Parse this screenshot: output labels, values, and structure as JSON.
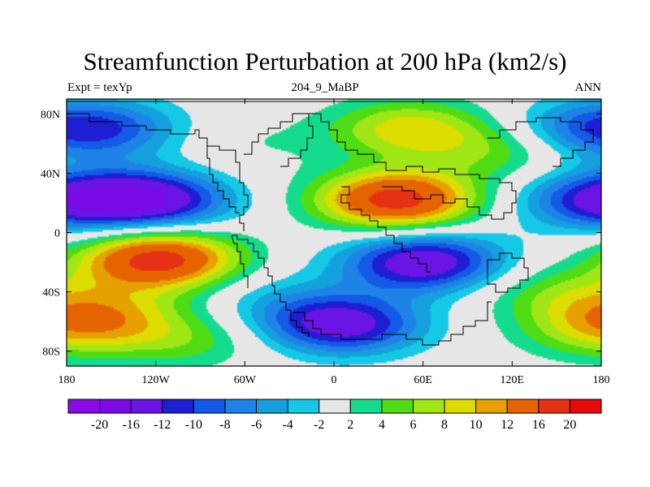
{
  "chart_data": {
    "type": "heatmap",
    "title": "Streamfunction Perturbation at 200 hPa (km2/s)",
    "subtitle_left": "Expt = texYp",
    "subtitle_center": "204_9_MaBP",
    "subtitle_right": "ANN",
    "x_ticks": [
      "180",
      "120W",
      "60W",
      "0",
      "60E",
      "120E",
      "180"
    ],
    "x_tick_values": [
      -180,
      -120,
      -60,
      0,
      60,
      120,
      180
    ],
    "y_ticks": [
      "80N",
      "40N",
      "0",
      "40S",
      "80S"
    ],
    "y_tick_values": [
      80,
      40,
      0,
      -40,
      -80
    ],
    "xlim": [
      -180,
      180
    ],
    "ylim": [
      -90,
      90
    ],
    "contour_levels": [
      "-20",
      "-16",
      "-12",
      "-10",
      "-8",
      "-6",
      "-4",
      "-2",
      "2",
      "4",
      "6",
      "8",
      "10",
      "12",
      "16",
      "20"
    ],
    "level_values": [
      -20,
      -16,
      -12,
      -10,
      -8,
      -6,
      -4,
      -2,
      2,
      4,
      6,
      8,
      10,
      12,
      16,
      20
    ],
    "colors": [
      "#8a0ae6",
      "#7c0ae6",
      "#6a14e6",
      "#1e1ed2",
      "#145ae6",
      "#1e82e6",
      "#14a0dc",
      "#14c8e6",
      "#e6e6e6",
      "#14dc8c",
      "#50dc14",
      "#a0e614",
      "#dcdc00",
      "#e6a000",
      "#e66400",
      "#e63214",
      "#e60a0a"
    ],
    "field_features": [
      {
        "lon": -125,
        "lat": 22,
        "value": -15
      },
      {
        "lon": -118,
        "lat": -18,
        "value": 18
      },
      {
        "lon": 42,
        "lat": 22,
        "value": 18
      },
      {
        "lon": 60,
        "lat": -20,
        "value": -15
      },
      {
        "lon": 5,
        "lat": -62,
        "value": -14
      },
      {
        "lon": 50,
        "lat": 70,
        "value": 9
      },
      {
        "lon": -150,
        "lat": 70,
        "value": -7
      },
      {
        "lon": 170,
        "lat": 70,
        "value": -7
      },
      {
        "lon": 178,
        "lat": 22,
        "value": -11
      },
      {
        "lon": -170,
        "lat": -62,
        "value": 6
      },
      {
        "lon": -150,
        "lat": -52,
        "value": 5
      },
      {
        "lon": 150,
        "lat": -40,
        "value": 5
      },
      {
        "lon": 170,
        "lat": -68,
        "value": 3
      },
      {
        "lon": -60,
        "lat": 60,
        "value": 2
      },
      {
        "lon": -40,
        "lat": -45,
        "value": -3
      },
      {
        "lon": -100,
        "lat": -72,
        "value": 5
      },
      {
        "lon": 110,
        "lat": 55,
        "value": 5
      }
    ]
  }
}
